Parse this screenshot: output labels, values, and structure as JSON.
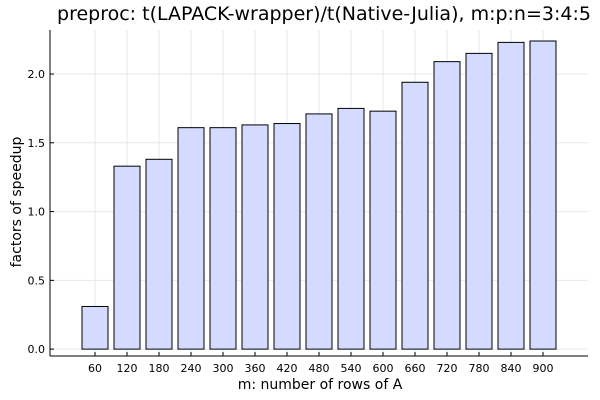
{
  "chart_data": {
    "type": "bar",
    "title": "preproc: t(LAPACK-wrapper)/t(Native-Julia), m:p:n=3:4:5",
    "xlabel": "m: number of rows of A",
    "ylabel": "factors of speedup",
    "categories": [
      "60",
      "120",
      "180",
      "240",
      "300",
      "360",
      "420",
      "480",
      "540",
      "600",
      "660",
      "720",
      "780",
      "840",
      "900"
    ],
    "values": [
      0.31,
      1.33,
      1.38,
      1.61,
      1.61,
      1.63,
      1.64,
      1.71,
      1.75,
      1.73,
      1.94,
      2.09,
      2.15,
      2.23,
      2.24
    ],
    "ylim": [
      -0.05,
      2.32
    ],
    "yticks": [
      "0.0",
      "0.5",
      "1.0",
      "1.5",
      "2.0"
    ],
    "grid": true,
    "bar_color": "#d3dcff",
    "edge_color": "#000000"
  }
}
